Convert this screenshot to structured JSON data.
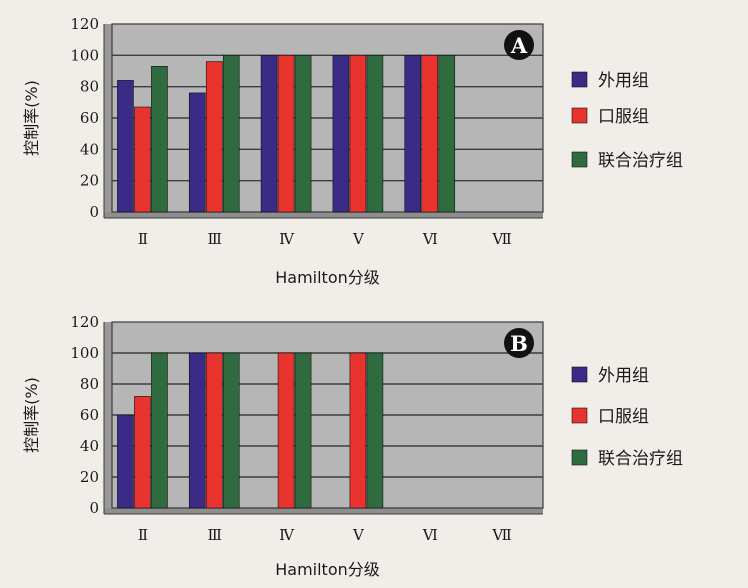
{
  "chart_data": [
    {
      "type": "bar",
      "badge": "A",
      "categories": [
        "Ⅱ",
        "Ⅲ",
        "Ⅳ",
        "Ⅴ",
        "Ⅵ",
        "Ⅶ"
      ],
      "series": [
        {
          "name": "外用组",
          "color": "#3b2a86",
          "values": [
            84,
            76,
            100,
            100,
            100,
            null
          ]
        },
        {
          "name": "口服组",
          "color": "#e8332e",
          "values": [
            67,
            96,
            100,
            100,
            100,
            null
          ]
        },
        {
          "name": "联合治疗组",
          "color": "#2f6b3f",
          "values": [
            93,
            100,
            100,
            100,
            100,
            null
          ]
        }
      ],
      "xlabel": "Hamilton分级",
      "ylabel": "控制率(%)",
      "ylim": [
        0,
        120
      ],
      "yticks": [
        "0",
        "20",
        "40",
        "60",
        "80",
        "100",
        "120"
      ],
      "grid": true,
      "plot_background": "#b6b6b6",
      "legend": "right"
    },
    {
      "type": "bar",
      "badge": "B",
      "categories": [
        "Ⅱ",
        "Ⅲ",
        "Ⅳ",
        "Ⅴ",
        "Ⅵ",
        "Ⅶ"
      ],
      "series": [
        {
          "name": "外用组",
          "color": "#3b2a86",
          "values": [
            60,
            100,
            null,
            null,
            null,
            null
          ]
        },
        {
          "name": "口服组",
          "color": "#e8332e",
          "values": [
            72,
            100,
            100,
            100,
            null,
            null
          ]
        },
        {
          "name": "联合治疗组",
          "color": "#2f6b3f",
          "values": [
            100,
            100,
            100,
            100,
            null,
            null
          ]
        }
      ],
      "xlabel": "Hamilton分级",
      "ylabel": "控制率(%)",
      "ylim": [
        0,
        120
      ],
      "yticks": [
        "0",
        "20",
        "40",
        "60",
        "80",
        "100",
        "120"
      ],
      "grid": true,
      "plot_background": "#b6b6b6",
      "legend": "right"
    }
  ]
}
